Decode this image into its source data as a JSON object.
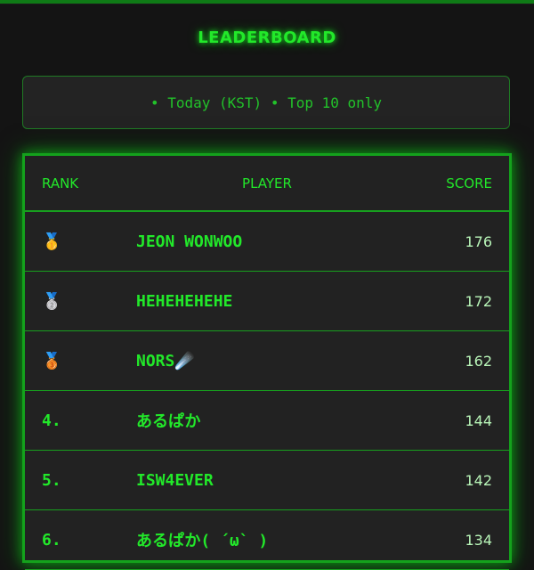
{
  "title": "LEADERBOARD",
  "filter_text": "• Today (KST) • Top 10 only",
  "table": {
    "headers": {
      "rank": "RANK",
      "player": "PLAYER",
      "score": "SCORE"
    },
    "rows": [
      {
        "rank": "🥇",
        "player": "JEON WONWOO",
        "score": "176"
      },
      {
        "rank": "🥈",
        "player": "HEHEHEHEHE",
        "score": "172"
      },
      {
        "rank": "🥉",
        "player": "NORS☄️",
        "score": "162"
      },
      {
        "rank": "4.",
        "player": "あるぱか",
        "score": "144"
      },
      {
        "rank": "5.",
        "player": "ISW4EVER",
        "score": "142"
      },
      {
        "rank": "6.",
        "player": "あるぱか( ´ω` )",
        "score": "134"
      }
    ]
  },
  "colors": {
    "accent": "#22e82a",
    "background": "#141414",
    "panel": "#222222"
  }
}
